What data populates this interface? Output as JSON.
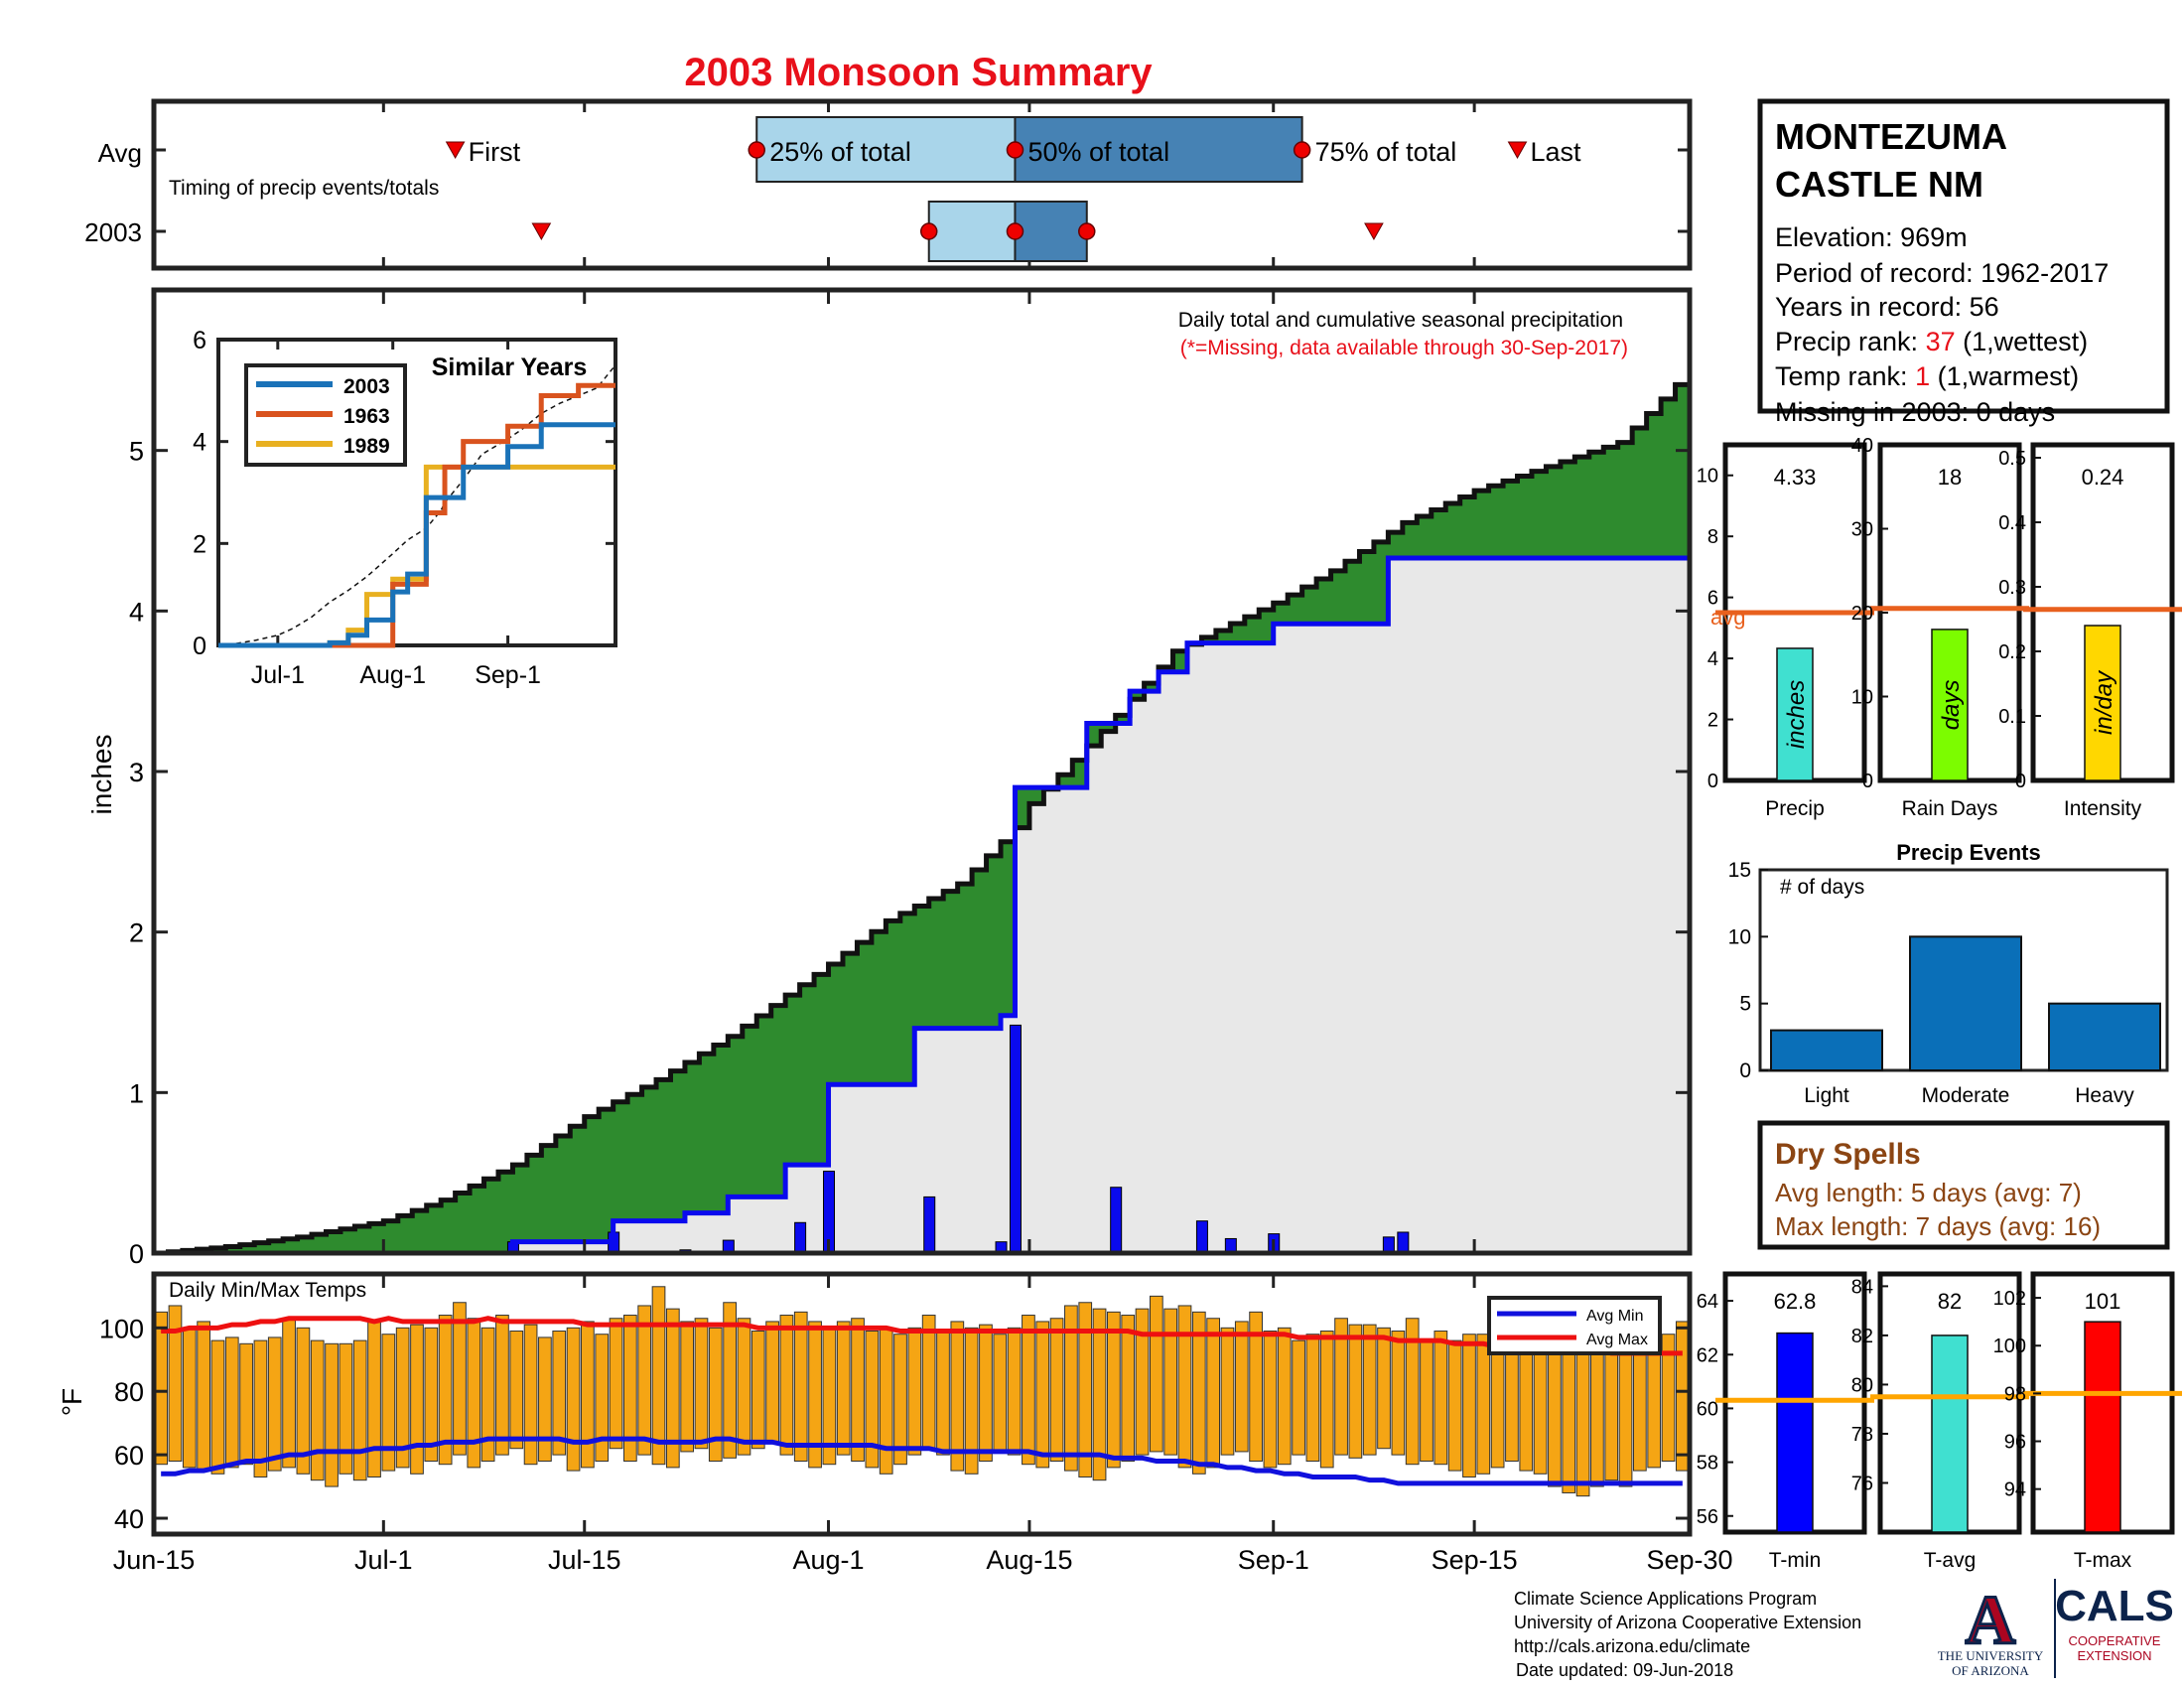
{
  "title": "2003 Monsoon Summary",
  "colors": {
    "title": "#e8101a",
    "avg": "#e8601e",
    "precip_bar": "#0a0aee",
    "cum_current": "#0a0aee",
    "brown_fill": "#b8860b",
    "green_fill": "#2e8b2e",
    "gray_fill": "#e8e8e8",
    "temp_bar": "#f5a514",
    "avg_min": "#1010dd",
    "avg_max": "#ee1010",
    "precip_gauge": "#40e0d0",
    "raindays_gauge": "#7cfc00",
    "intensity_gauge": "#ffd700",
    "tmin_gauge": "#0000ff",
    "tavg_gauge": "#40e0d0",
    "tmax_gauge": "#ff0000",
    "orange_line": "#ffa500",
    "events_bar": "#0a6fb8",
    "dry_spell_text": "#8b4513"
  },
  "timing": {
    "row_labels": [
      "Avg",
      "2003"
    ],
    "subtitle": "Timing of precip events/totals",
    "avg_markers": {
      "first": "First",
      "p25": "25% of total",
      "p50": "50% of total",
      "p75": "75% of total",
      "last": "Last"
    },
    "avg_dates": {
      "first": "2003-07-06",
      "p25": "2003-07-27",
      "p50": "2003-08-14",
      "p75": "2003-09-03",
      "last": "2003-09-18"
    },
    "y2003_dates": {
      "first": "2003-07-12",
      "p25": "2003-08-08",
      "p50": "2003-08-14",
      "p75": "2003-08-19",
      "last": "2003-09-08"
    }
  },
  "station": {
    "name_line1": "MONTEZUMA",
    "name_line2": "CASTLE NM",
    "elevation": "Elevation: 969m",
    "period": "Period of record: 1962-2017",
    "years": "Years in record: 56",
    "precip_rank_label": "Precip rank: ",
    "precip_rank_value": "37",
    "precip_rank_note": " (1,wettest)",
    "temp_rank_label": "Temp rank: ",
    "temp_rank_value": "1",
    "temp_rank_note": " (1,warmest)",
    "missing": "Missing in 2003: 0 days"
  },
  "main_chart": {
    "ylabel": "inches",
    "note1": "Daily total and cumulative seasonal precipitation",
    "note2": "(*=Missing, data available through 30-Sep-2017)",
    "x_ticks": [
      "Jun-15",
      "Jul-1",
      "Jul-15",
      "Aug-1",
      "Aug-15",
      "Sep-1",
      "Sep-15",
      "Sep-30"
    ],
    "y_ticks": [
      "0",
      "1",
      "2",
      "3",
      "4",
      "5"
    ]
  },
  "inset": {
    "title": "Similar Years",
    "x_ticks": [
      "Jul-1",
      "Aug-1",
      "Sep-1"
    ],
    "y_ticks": [
      "0",
      "2",
      "4",
      "6"
    ],
    "legend": [
      "2003",
      "1963",
      "1989"
    ],
    "colors": [
      "#1a72b8",
      "#d9531e",
      "#e8b020"
    ]
  },
  "gauges": [
    {
      "label": "Precip",
      "value_text": "4.33",
      "unit": "inches",
      "avg_label": "avg",
      "ticks": [
        "0",
        "2",
        "4",
        "6",
        "8",
        "10"
      ]
    },
    {
      "label": "Rain Days",
      "value_text": "18",
      "unit": "days",
      "ticks": [
        "0",
        "10",
        "20",
        "30",
        "40"
      ]
    },
    {
      "label": "Intensity",
      "value_text": "0.24",
      "unit": "in/day",
      "ticks": [
        "0",
        "0.1",
        "0.2",
        "0.3",
        "0.4",
        "0.5"
      ]
    }
  ],
  "events": {
    "title": "Precip Events",
    "ylabel": "# of days",
    "categories": [
      "Light",
      "Moderate",
      "Heavy"
    ],
    "y_ticks": [
      "0",
      "5",
      "10",
      "15"
    ]
  },
  "dry_spells": {
    "title": "Dry Spells",
    "line1": "Avg length: 5 days (avg: 7)",
    "line2": "Max length: 7 days (avg: 16)"
  },
  "temps": {
    "title": "Daily Min/Max Temps",
    "ylabel": "°F",
    "y_ticks": [
      "40",
      "60",
      "80",
      "100"
    ],
    "legend": [
      "Avg Min",
      "Avg Max"
    ]
  },
  "temp_gauges": [
    {
      "label": "T-min",
      "value_text": "62.8",
      "ticks": [
        "56",
        "58",
        "60",
        "62",
        "64"
      ]
    },
    {
      "label": "T-avg",
      "value_text": "82",
      "ticks": [
        "76",
        "78",
        "80",
        "82",
        "84"
      ]
    },
    {
      "label": "T-max",
      "value_text": "101",
      "ticks": [
        "94",
        "96",
        "98",
        "100",
        "102"
      ]
    }
  ],
  "footer": {
    "line1": "Climate Science Applications Program",
    "line2": "University of Arizona Cooperative Extension",
    "line3": "http://cals.arizona.edu/climate",
    "line4": "Date updated: 09-Jun-2018"
  },
  "logos": {
    "ua_letter": "A",
    "ua_line1": "THE UNIVERSITY",
    "ua_line2": "OF ARIZONA",
    "cals": "CALS",
    "cals_line1": "COOPERATIVE",
    "cals_line2": "EXTENSION"
  },
  "chart_data": [
    {
      "type": "area",
      "title": "Daily total and cumulative seasonal precipitation",
      "ylabel": "inches",
      "xlim": [
        "2003-06-15",
        "2003-09-30"
      ],
      "ylim": [
        0,
        6
      ],
      "series": [
        {
          "name": "cumulative_avg",
          "x": [
            "2003-06-15",
            "2003-06-20",
            "2003-06-25",
            "2003-07-01",
            "2003-07-05",
            "2003-07-10",
            "2003-07-15",
            "2003-07-20",
            "2003-07-25",
            "2003-08-01",
            "2003-08-05",
            "2003-08-10",
            "2003-08-14",
            "2003-08-15",
            "2003-08-20",
            "2003-08-25",
            "2003-09-01",
            "2003-09-05",
            "2003-09-10",
            "2003-09-15",
            "2003-09-20",
            "2003-09-25",
            "2003-09-30"
          ],
          "values": [
            0,
            0.04,
            0.1,
            0.2,
            0.33,
            0.55,
            0.85,
            1.08,
            1.35,
            1.8,
            2.07,
            2.3,
            2.65,
            2.8,
            3.25,
            3.75,
            4.05,
            4.25,
            4.55,
            4.75,
            4.9,
            5.05,
            5.5
          ]
        },
        {
          "name": "cumulative_2003",
          "x": [
            "2003-06-15",
            "2003-07-10",
            "2003-07-14",
            "2003-07-17",
            "2003-07-22",
            "2003-07-25",
            "2003-07-29",
            "2003-08-01",
            "2003-08-07",
            "2003-08-13",
            "2003-08-14",
            "2003-08-17",
            "2003-08-19",
            "2003-08-22",
            "2003-08-24",
            "2003-08-26",
            "2003-09-01",
            "2003-09-08",
            "2003-09-09",
            "2003-09-30"
          ],
          "values": [
            0,
            0.07,
            0.07,
            0.2,
            0.25,
            0.35,
            0.55,
            1.05,
            1.4,
            1.48,
            2.9,
            2.9,
            3.3,
            3.5,
            3.62,
            3.8,
            3.92,
            3.92,
            4.33,
            4.33
          ]
        },
        {
          "name": "daily_2003",
          "x": [
            "2003-07-10",
            "2003-07-17",
            "2003-07-22",
            "2003-07-25",
            "2003-07-30",
            "2003-08-01",
            "2003-08-08",
            "2003-08-13",
            "2003-08-14",
            "2003-08-21",
            "2003-08-27",
            "2003-08-29",
            "2003-09-01",
            "2003-09-09",
            "2003-09-10"
          ],
          "values": [
            0.07,
            0.13,
            0.02,
            0.08,
            0.19,
            0.51,
            0.35,
            0.07,
            1.42,
            0.41,
            0.2,
            0.09,
            0.12,
            0.1,
            0.13
          ]
        }
      ]
    },
    {
      "type": "line",
      "title": "Similar Years",
      "x": [
        "2003-06-15",
        "2003-07-01",
        "2003-07-15",
        "2003-07-20",
        "2003-07-25",
        "2003-08-01",
        "2003-08-05",
        "2003-08-10",
        "2003-08-15",
        "2003-08-20",
        "2003-09-01",
        "2003-09-10",
        "2003-09-20",
        "2003-09-30"
      ],
      "ylim": [
        0,
        6
      ],
      "series": [
        {
          "name": "2003",
          "values": [
            0,
            0,
            0.05,
            0.2,
            0.5,
            1.05,
            1.4,
            2.9,
            2.9,
            3.5,
            3.9,
            4.33,
            4.33,
            4.33
          ]
        },
        {
          "name": "1963",
          "values": [
            0,
            0,
            0,
            0,
            0,
            1.2,
            1.2,
            2.6,
            3.5,
            4.0,
            4.3,
            4.9,
            5.1,
            5.1
          ]
        },
        {
          "name": "1989",
          "values": [
            0,
            0,
            0.05,
            0.3,
            1.0,
            1.3,
            1.3,
            3.5,
            3.5,
            3.5,
            3.5,
            3.5,
            3.5,
            3.5
          ]
        }
      ]
    },
    {
      "type": "bar",
      "title": "Gauges",
      "categories": [
        "Precip",
        "Rain Days",
        "Intensity"
      ],
      "values": [
        4.33,
        18,
        0.24
      ],
      "avg": [
        5.5,
        20.5,
        0.265
      ],
      "ylim": [
        [
          0,
          11
        ],
        [
          0,
          40
        ],
        [
          0,
          0.52
        ]
      ]
    },
    {
      "type": "bar",
      "title": "Precip Events",
      "categories": [
        "Light",
        "Moderate",
        "Heavy"
      ],
      "values": [
        3,
        10,
        5
      ],
      "ylim": [
        0,
        15
      ]
    },
    {
      "type": "bar",
      "title": "Daily Min/Max Temps",
      "ylabel": "°F",
      "ylim": [
        35,
        117
      ],
      "x_start": "2003-06-15",
      "tmin": [
        57,
        58,
        56,
        55,
        54,
        56,
        57,
        53,
        55,
        56,
        54,
        52,
        50,
        54,
        52,
        53,
        55,
        56,
        54,
        58,
        57,
        60,
        56,
        58,
        60,
        62,
        57,
        58,
        60,
        55,
        56,
        58,
        62,
        58,
        60,
        57,
        56,
        61,
        62,
        58,
        59,
        60,
        62,
        64,
        60,
        58,
        56,
        57,
        60,
        58,
        56,
        54,
        57,
        60,
        62,
        60,
        55,
        54,
        58,
        61,
        60,
        57,
        56,
        58,
        55,
        53,
        52,
        56,
        58,
        60,
        61,
        60,
        56,
        54,
        56,
        60,
        61,
        58,
        56,
        57,
        60,
        58,
        56,
        60,
        59,
        60,
        62,
        60,
        57,
        58,
        57,
        55,
        53,
        54,
        56,
        58,
        55,
        54,
        50,
        48,
        47,
        50,
        52,
        50,
        55,
        56,
        58,
        55
      ],
      "tmax": [
        105,
        107,
        100,
        102,
        96,
        97,
        95,
        96,
        97,
        103,
        100,
        96,
        95,
        95,
        96,
        102,
        98,
        100,
        101,
        100,
        104,
        108,
        103,
        100,
        104,
        99,
        101,
        97,
        99,
        100,
        102,
        98,
        103,
        104,
        107,
        113,
        106,
        102,
        103,
        100,
        108,
        103,
        99,
        102,
        104,
        105,
        102,
        100,
        102,
        103,
        99,
        100,
        98,
        100,
        104,
        99,
        102,
        100,
        101,
        98,
        100,
        104,
        102,
        103,
        107,
        108,
        106,
        105,
        104,
        106,
        110,
        106,
        107,
        105,
        103,
        100,
        102,
        105,
        99,
        100,
        96,
        98,
        99,
        103,
        101,
        101,
        100,
        99,
        103,
        96,
        99,
        96,
        98,
        98,
        94,
        96,
        97,
        96,
        101,
        101,
        101,
        102,
        100,
        102,
        99,
        100,
        98,
        102
      ],
      "avg_min": [
        54,
        54,
        55,
        55,
        56,
        57,
        58,
        58,
        59,
        60,
        60,
        61,
        61,
        61,
        61,
        62,
        62,
        62,
        63,
        63,
        64,
        64,
        64,
        65,
        65,
        65,
        65,
        65,
        65,
        64,
        64,
        65,
        65,
        65,
        65,
        64,
        64,
        64,
        64,
        65,
        65,
        64,
        64,
        64,
        63,
        63,
        63,
        63,
        63,
        63,
        63,
        62,
        62,
        62,
        62,
        61,
        61,
        61,
        61,
        61,
        61,
        61,
        60,
        60,
        60,
        60,
        60,
        59,
        59,
        59,
        58,
        58,
        58,
        57,
        57,
        56,
        56,
        55,
        55,
        54,
        54,
        53,
        53,
        53,
        53,
        52,
        52,
        51,
        51,
        51,
        51,
        51,
        51,
        51,
        51,
        51,
        51,
        51,
        51,
        51,
        51,
        51,
        51,
        51,
        51,
        51,
        51,
        51
      ],
      "avg_max": [
        99,
        99,
        100,
        100,
        100,
        101,
        101,
        102,
        102,
        103,
        103,
        103,
        103,
        103,
        103,
        102,
        103,
        102,
        102,
        102,
        102,
        102,
        102,
        103,
        102,
        102,
        102,
        102,
        102,
        102,
        101,
        101,
        101,
        101,
        101,
        101,
        101,
        101,
        101,
        101,
        101,
        101,
        100,
        100,
        100,
        100,
        100,
        100,
        100,
        100,
        100,
        100,
        99,
        99,
        99,
        99,
        99,
        99,
        99,
        99,
        99,
        99,
        99,
        99,
        99,
        99,
        99,
        99,
        99,
        98,
        98,
        98,
        98,
        98,
        98,
        98,
        98,
        98,
        98,
        98,
        97,
        97,
        97,
        97,
        97,
        97,
        97,
        96,
        96,
        96,
        96,
        95,
        95,
        95,
        94,
        94,
        93,
        93,
        93,
        93,
        93,
        93,
        92,
        92,
        92,
        92,
        92,
        92
      ]
    },
    {
      "type": "bar",
      "title": "Temperature gauges",
      "categories": [
        "T-min",
        "T-avg",
        "T-max"
      ],
      "values": [
        62.8,
        82,
        101
      ],
      "avg": [
        60.3,
        79.5,
        98
      ],
      "ylim": [
        [
          55.4,
          65.0
        ],
        [
          74.0,
          84.5
        ],
        [
          92.2,
          103.0
        ]
      ]
    }
  ]
}
